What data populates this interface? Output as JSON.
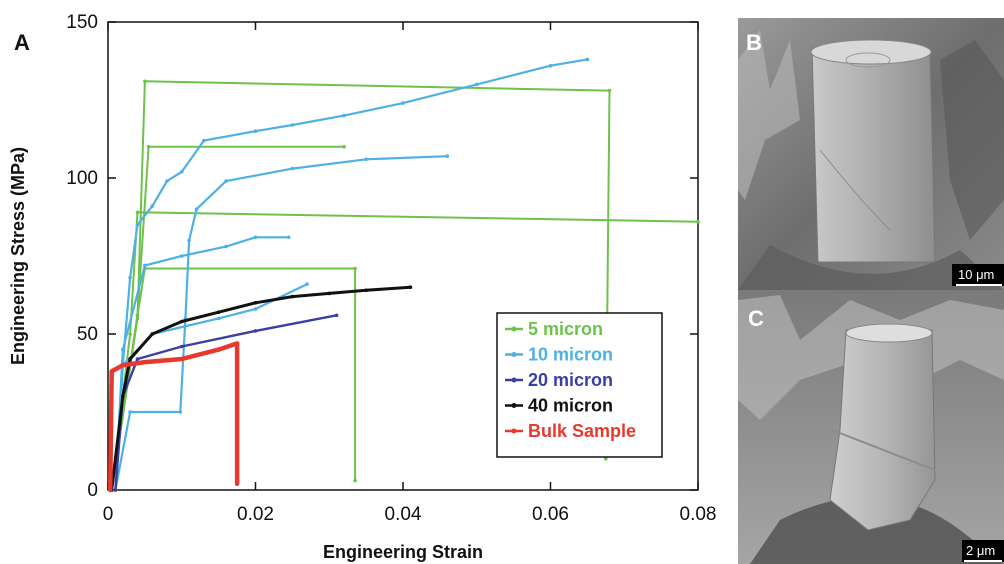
{
  "panel_labels": {
    "a": "A",
    "b": "B",
    "c": "C"
  },
  "micrographs": {
    "b": {
      "scale_bar": "10 μm"
    },
    "c": {
      "scale_bar": "2 μm"
    }
  },
  "colors": {
    "5 micron": "#6cc24a",
    "10 micron": "#4fb0e4",
    "20 micron": "#3a3fa8",
    "40 micron": "#111111",
    "Bulk Sample": "#e8392e"
  },
  "chart_data": {
    "type": "line",
    "xlabel": "Engineering Strain",
    "ylabel": "Engineering Stress (MPa)",
    "xlim": [
      0,
      0.08
    ],
    "ylim": [
      0,
      150
    ],
    "xticks": [
      "0",
      "0.02",
      "0.04",
      "0.06",
      "0.08"
    ],
    "yticks": [
      "0",
      "50",
      "100",
      "150"
    ],
    "grid": false,
    "legend_position": "lower-right",
    "series": [
      {
        "name": "5 micron",
        "color": "#6cc24a",
        "width": 2,
        "curves": [
          [
            [
              0.0005,
              0
            ],
            [
              0.004,
              55
            ],
            [
              0.005,
              131
            ],
            [
              0.068,
              128
            ],
            [
              0.0675,
              10
            ]
          ],
          [
            [
              0.0005,
              0
            ],
            [
              0.004,
              56
            ],
            [
              0.0055,
              110
            ],
            [
              0.032,
              110
            ]
          ],
          [
            [
              0.0005,
              0
            ],
            [
              0.003,
              50
            ],
            [
              0.004,
              89
            ],
            [
              0.08,
              86
            ]
          ],
          [
            [
              0.0005,
              0
            ],
            [
              0.004,
              56
            ],
            [
              0.005,
              71
            ],
            [
              0.0335,
              71
            ],
            [
              0.0335,
              3
            ]
          ]
        ]
      },
      {
        "name": "10 micron",
        "color": "#4fb0e4",
        "width": 2.2,
        "curves": [
          [
            [
              0.001,
              0
            ],
            [
              0.002,
              40
            ],
            [
              0.003,
              68
            ],
            [
              0.004,
              85
            ],
            [
              0.006,
              91
            ],
            [
              0.008,
              99
            ],
            [
              0.01,
              102
            ],
            [
              0.013,
              112
            ],
            [
              0.02,
              115
            ],
            [
              0.025,
              117
            ],
            [
              0.032,
              120
            ],
            [
              0.04,
              124
            ],
            [
              0.05,
              130
            ],
            [
              0.06,
              136
            ],
            [
              0.065,
              138
            ]
          ],
          [
            [
              0.001,
              0
            ],
            [
              0.003,
              25
            ],
            [
              0.0098,
              25
            ],
            [
              0.0105,
              55
            ],
            [
              0.011,
              80
            ],
            [
              0.012,
              90
            ],
            [
              0.016,
              99
            ],
            [
              0.025,
              103
            ],
            [
              0.035,
              106
            ],
            [
              0.046,
              107
            ]
          ],
          [
            [
              0.001,
              0
            ],
            [
              0.002,
              45
            ],
            [
              0.005,
              72
            ],
            [
              0.01,
              75
            ],
            [
              0.016,
              78
            ],
            [
              0.02,
              81
            ],
            [
              0.0245,
              81
            ]
          ],
          [
            [
              0.001,
              0
            ],
            [
              0.002,
              40
            ],
            [
              0.006,
              50
            ],
            [
              0.015,
              55
            ],
            [
              0.02,
              58
            ],
            [
              0.027,
              66
            ]
          ]
        ]
      },
      {
        "name": "20 micron",
        "color": "#3a3fa8",
        "width": 2.4,
        "curves": [
          [
            [
              0.001,
              0
            ],
            [
              0.002,
              30
            ],
            [
              0.004,
              42
            ],
            [
              0.01,
              46
            ],
            [
              0.02,
              51
            ],
            [
              0.031,
              56
            ]
          ]
        ]
      },
      {
        "name": "40 micron",
        "color": "#111111",
        "width": 3,
        "curves": [
          [
            [
              0.0005,
              0
            ],
            [
              0.002,
              30
            ],
            [
              0.003,
              42
            ],
            [
              0.006,
              50
            ],
            [
              0.01,
              54
            ],
            [
              0.015,
              57
            ],
            [
              0.02,
              60
            ],
            [
              0.025,
              62
            ],
            [
              0.03,
              63
            ],
            [
              0.035,
              64
            ],
            [
              0.041,
              65
            ]
          ]
        ]
      },
      {
        "name": "Bulk Sample",
        "color": "#e8392e",
        "width": 4.5,
        "curves": [
          [
            [
              0.0003,
              0
            ],
            [
              0.0005,
              38
            ],
            [
              0.002,
              40
            ],
            [
              0.005,
              41
            ],
            [
              0.01,
              42
            ],
            [
              0.015,
              45
            ],
            [
              0.0175,
              47
            ],
            [
              0.0175,
              2
            ]
          ]
        ]
      }
    ]
  }
}
